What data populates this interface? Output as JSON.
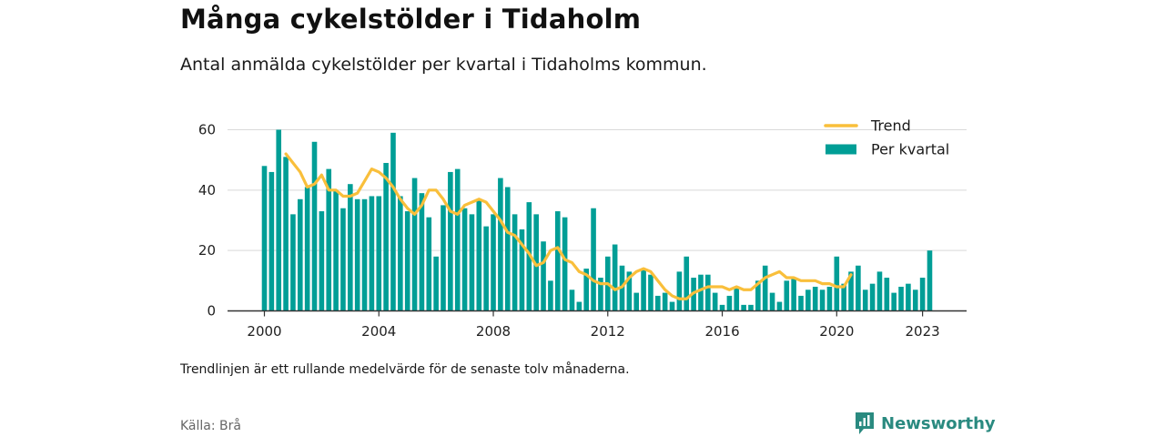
{
  "header": {
    "title": "Många cykelstölder i Tidaholm",
    "subtitle": "Antal anmälda cykelstölder per kvartal i Tidaholms kommun."
  },
  "footer": {
    "note": "Trendlinjen är ett rullande medelvärde för de senaste tolv månaderna.",
    "source": "Källa: Brå",
    "brand": "Newsworthy"
  },
  "colors": {
    "bar": "#009e96",
    "trend": "#f9bf3b",
    "grid": "#d9d9d9",
    "axis": "#333333",
    "brand": "#2a8a80"
  },
  "chart_data": {
    "type": "bar",
    "x_unit": "quarter",
    "x_start": "2000-Q1",
    "x_ticks": [
      "2000",
      "2004",
      "2008",
      "2012",
      "2016",
      "2020",
      "2023"
    ],
    "y_ticks": [
      "0",
      "20",
      "40",
      "60"
    ],
    "ylim": [
      0,
      60
    ],
    "legend": {
      "position": "top-right"
    },
    "series": [
      {
        "name": "Per kvartal",
        "kind": "bar",
        "values": [
          48,
          46,
          60,
          51,
          32,
          37,
          41,
          56,
          33,
          47,
          40,
          34,
          42,
          37,
          37,
          38,
          38,
          49,
          59,
          38,
          33,
          44,
          39,
          31,
          18,
          35,
          46,
          47,
          34,
          32,
          37,
          28,
          32,
          44,
          41,
          32,
          27,
          36,
          32,
          23,
          10,
          33,
          31,
          7,
          3,
          14,
          34,
          11,
          18,
          22,
          15,
          13,
          6,
          14,
          12,
          5,
          6,
          3,
          13,
          18,
          11,
          12,
          12,
          6,
          2,
          5,
          8,
          2,
          2,
          10,
          15,
          6,
          3,
          10,
          11,
          5,
          7,
          8,
          7,
          8,
          18,
          9,
          13,
          15,
          7,
          9,
          13,
          11,
          6,
          8,
          9,
          7,
          11,
          20
        ]
      },
      {
        "name": "Trend",
        "kind": "line",
        "x_offset": 3,
        "values": [
          52,
          49,
          46,
          41,
          42,
          45,
          40,
          40,
          38,
          38,
          39,
          43,
          47,
          46,
          44,
          41,
          37,
          34,
          32,
          35,
          40,
          40,
          37,
          33,
          32,
          35,
          36,
          37,
          36,
          33,
          30,
          26,
          25,
          22,
          19,
          15,
          16,
          20,
          21,
          17,
          16,
          13,
          12,
          10,
          9,
          9,
          7,
          8,
          11,
          13,
          14,
          13,
          10,
          7,
          5,
          4,
          4,
          6,
          7,
          8,
          8,
          8,
          7,
          8,
          7,
          7,
          9,
          11,
          12,
          13,
          11,
          11,
          10,
          10,
          10,
          9,
          9,
          8,
          8,
          12
        ]
      }
    ]
  }
}
